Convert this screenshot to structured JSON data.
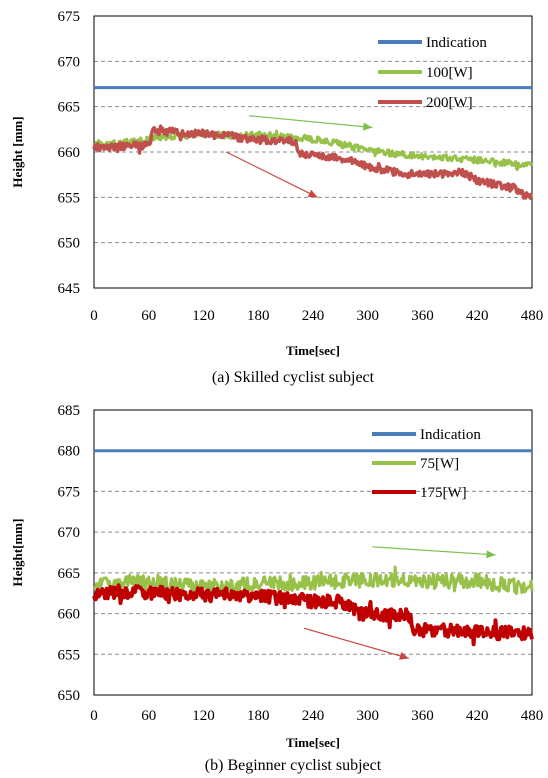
{
  "chart_data": [
    {
      "type": "line",
      "caption": "(a) Skilled cyclist subject",
      "xlabel": "Time[sec]",
      "ylabel": "Height [mm]",
      "xlim": [
        0,
        480
      ],
      "ylim": [
        645,
        675
      ],
      "x_ticks": [
        0,
        60,
        120,
        180,
        240,
        300,
        360,
        420,
        480
      ],
      "y_ticks": [
        645,
        650,
        655,
        660,
        665,
        670,
        675
      ],
      "grid": "horizontal-dashed",
      "legend_position": "top-right",
      "colors": {
        "Indication": "#4a7ebb",
        "100[W]": "#98c14a",
        "200[W]": "#c0504d",
        "arrow_green": "#7dbf4e",
        "arrow_red": "#c9473f"
      },
      "series": [
        {
          "name": "Indication",
          "x": [
            0,
            480
          ],
          "y": [
            667.1,
            667.1
          ]
        },
        {
          "name": "100[W]",
          "x": [
            0,
            30,
            55,
            65,
            90,
            120,
            150,
            180,
            210,
            240,
            270,
            300,
            330,
            360,
            390,
            420,
            450,
            480
          ],
          "y": [
            660.9,
            661.0,
            661.3,
            661.6,
            661.7,
            662.0,
            661.8,
            661.9,
            661.7,
            661.4,
            660.9,
            660.2,
            659.8,
            659.5,
            659.4,
            659.1,
            658.8,
            658.6
          ]
        },
        {
          "name": "200[W]",
          "x": [
            0,
            30,
            60,
            65,
            90,
            120,
            150,
            160,
            190,
            220,
            225,
            250,
            270,
            290,
            300,
            320,
            340,
            360,
            390,
            405,
            420,
            440,
            460,
            470,
            480
          ],
          "y": [
            660.5,
            660.6,
            660.8,
            662.3,
            662.2,
            662.0,
            661.9,
            661.5,
            661.3,
            661.2,
            659.8,
            659.6,
            659.4,
            658.9,
            658.4,
            658.0,
            657.6,
            657.5,
            657.6,
            657.8,
            656.8,
            656.4,
            656.0,
            655.3,
            655.3
          ]
        }
      ],
      "trend_arrows": [
        {
          "series": "100[W]",
          "from": [
            170,
            664.0
          ],
          "to": [
            305,
            662.7
          ]
        },
        {
          "series": "200[W]",
          "from": [
            145,
            660.0
          ],
          "to": [
            245,
            655.0
          ]
        }
      ]
    },
    {
      "type": "line",
      "caption": "(b) Beginner cyclist subject",
      "xlabel": "Time[sec]",
      "ylabel": "Height[mm]",
      "xlim": [
        0,
        480
      ],
      "ylim": [
        650,
        685
      ],
      "x_ticks": [
        0,
        60,
        120,
        180,
        240,
        300,
        360,
        420,
        480
      ],
      "y_ticks": [
        650,
        655,
        660,
        665,
        670,
        675,
        680,
        685
      ],
      "grid": "horizontal-dashed",
      "legend_position": "top-right",
      "colors": {
        "Indication": "#4a7ebb",
        "75[W]": "#98c14a",
        "175[W]": "#c00000",
        "arrow_green": "#7dbf4e",
        "arrow_red": "#c9473f"
      },
      "series": [
        {
          "name": "Indication",
          "x": [
            0,
            480
          ],
          "y": [
            680.0,
            680.0
          ]
        },
        {
          "name": "75[W]",
          "x": [
            0,
            30,
            60,
            90,
            120,
            150,
            180,
            210,
            240,
            270,
            300,
            330,
            360,
            390,
            420,
            450,
            480
          ],
          "y": [
            663.6,
            663.8,
            664.0,
            663.5,
            663.3,
            663.4,
            663.6,
            663.7,
            663.8,
            664.0,
            664.1,
            664.0,
            663.9,
            664.0,
            664.0,
            663.5,
            663.2
          ]
        },
        {
          "name": "175[W]",
          "x": [
            0,
            30,
            60,
            90,
            120,
            150,
            180,
            210,
            240,
            270,
            280,
            290,
            320,
            345,
            350,
            380,
            410,
            440,
            480
          ],
          "y": [
            662.5,
            662.7,
            662.6,
            662.4,
            662.3,
            662.3,
            662.2,
            661.8,
            661.5,
            661.4,
            661.0,
            660.0,
            659.8,
            659.8,
            658.0,
            657.9,
            657.8,
            657.6,
            657.6
          ]
        }
      ],
      "trend_arrows": [
        {
          "series": "75[W]",
          "from": [
            305,
            668.2
          ],
          "to": [
            440,
            667.2
          ]
        },
        {
          "series": "175[W]",
          "from": [
            230,
            658.2
          ],
          "to": [
            345,
            654.5
          ]
        }
      ]
    }
  ]
}
